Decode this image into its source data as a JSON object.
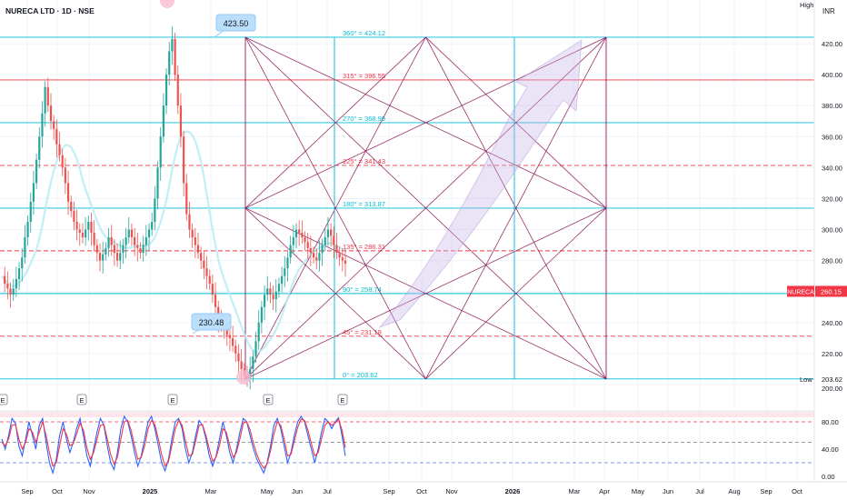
{
  "header": {
    "symbol_title": "NURECA LTD · 1D · NSE"
  },
  "axis": {
    "currency": "INR",
    "high_tag": "High",
    "low_tag": "Low"
  },
  "colors": {
    "up": "#26a69a",
    "down": "#ef5350",
    "cyan": "#00bcd4",
    "red": "#f23645",
    "purple": "#880e4f",
    "tag": "#f23645"
  },
  "chart_data": {
    "type": "candlestick",
    "title": "NURECA LTD · 1D · NSE",
    "y_ticks": [
      200,
      220,
      240,
      260,
      280,
      300,
      320,
      340,
      360,
      380,
      400,
      420
    ],
    "ylim": [
      196,
      432
    ],
    "x_labels": [
      "Sep",
      "Oct",
      "Nov",
      "2025",
      "Mar",
      "May",
      "Jun",
      "Jul",
      "Sep",
      "Oct",
      "Nov",
      "2026",
      "Mar",
      "Apr",
      "May",
      "Jun",
      "Jul",
      "Aug",
      "Sep",
      "Oct"
    ],
    "last_price": {
      "symbol": "NURECA",
      "value": 260.15
    },
    "high_value": "High",
    "low_value": 203.62,
    "callouts": [
      {
        "label": "423.50",
        "value": 423.5
      },
      {
        "label": "230.48",
        "value": 230.48
      }
    ],
    "gann_levels": [
      {
        "label": "360° = 424.12",
        "value": 424.12,
        "style": "cyan"
      },
      {
        "label": "315° = 396.55",
        "value": 396.55,
        "style": "red"
      },
      {
        "label": "270° = 368.99",
        "value": 368.99,
        "style": "cyan"
      },
      {
        "label": "225° = 341.43",
        "value": 341.43,
        "style": "reddash"
      },
      {
        "label": "180° = 313.87",
        "value": 313.87,
        "style": "cyan"
      },
      {
        "label": "135° = 286.31",
        "value": 286.31,
        "style": "reddash"
      },
      {
        "label": "90° = 258.74",
        "value": 258.74,
        "style": "cyan"
      },
      {
        "label": "45° = 231.18",
        "value": 231.18,
        "style": "reddash"
      },
      {
        "label": "0° = 203.62",
        "value": 203.62,
        "style": "cyan"
      }
    ],
    "candles_approx": [
      270,
      265,
      262,
      258,
      262,
      268,
      275,
      282,
      295,
      305,
      318,
      330,
      345,
      360,
      375,
      392,
      380,
      370,
      365,
      355,
      348,
      340,
      330,
      318,
      312,
      305,
      300,
      298,
      295,
      300,
      305,
      298,
      290,
      285,
      280,
      284,
      288,
      295,
      290,
      285,
      280,
      285,
      290,
      295,
      300,
      295,
      290,
      288,
      285,
      290,
      295,
      300,
      305,
      320,
      340,
      360,
      380,
      400,
      415,
      423,
      400,
      380,
      360,
      330,
      310,
      300,
      295,
      290,
      285,
      280,
      275,
      270,
      265,
      258,
      250,
      242,
      238,
      235,
      232,
      230,
      225,
      220,
      215,
      210,
      206,
      204,
      210,
      218,
      228,
      240,
      250,
      258,
      262,
      258,
      255,
      260,
      265,
      270,
      275,
      282,
      290,
      295,
      300,
      298,
      295,
      292,
      288,
      285,
      282,
      280,
      285,
      290,
      295,
      300,
      296,
      290,
      285,
      282,
      280,
      278
    ],
    "oscillator": {
      "name": "Stochastic",
      "ticks": [
        0,
        40,
        80
      ],
      "ylim": [
        -10,
        100
      ],
      "bands": [
        20,
        50,
        80
      ],
      "k_approx": [
        55,
        40,
        60,
        85,
        78,
        45,
        30,
        55,
        80,
        60,
        40,
        75,
        85,
        50,
        20,
        5,
        25,
        60,
        80,
        55,
        35,
        50,
        70,
        85,
        60,
        30,
        15,
        40,
        65,
        85,
        75,
        45,
        20,
        10,
        35,
        70,
        88,
        80,
        60,
        35,
        15,
        30,
        55,
        80,
        88,
        70,
        45,
        20,
        8,
        25,
        55,
        80,
        85,
        70,
        40,
        20,
        35,
        60,
        82,
        75,
        55,
        30,
        15,
        30,
        55,
        80,
        60,
        35,
        20,
        40,
        65,
        85,
        80,
        60,
        40,
        25,
        15,
        5,
        20,
        45,
        75,
        85,
        70,
        45,
        20,
        35,
        60,
        80,
        88,
        80,
        60,
        40,
        20,
        40,
        65,
        85,
        80,
        70,
        80,
        86,
        60,
        30
      ],
      "d_approx": [
        50,
        45,
        55,
        75,
        76,
        55,
        40,
        50,
        70,
        65,
        50,
        65,
        80,
        60,
        35,
        15,
        20,
        45,
        70,
        62,
        45,
        48,
        62,
        78,
        68,
        42,
        25,
        35,
        55,
        75,
        76,
        55,
        32,
        18,
        28,
        55,
        80,
        82,
        68,
        45,
        25,
        28,
        45,
        70,
        82,
        76,
        55,
        32,
        15,
        22,
        45,
        70,
        82,
        75,
        52,
        30,
        32,
        52,
        75,
        76,
        60,
        40,
        22,
        28,
        45,
        70,
        65,
        45,
        28,
        35,
        55,
        78,
        80,
        68,
        48,
        32,
        20,
        12,
        18,
        38,
        62,
        80,
        75,
        55,
        30,
        32,
        52,
        72,
        84,
        82,
        68,
        48,
        30,
        35,
        55,
        75,
        80,
        75,
        78,
        84,
        68,
        42
      ]
    }
  }
}
